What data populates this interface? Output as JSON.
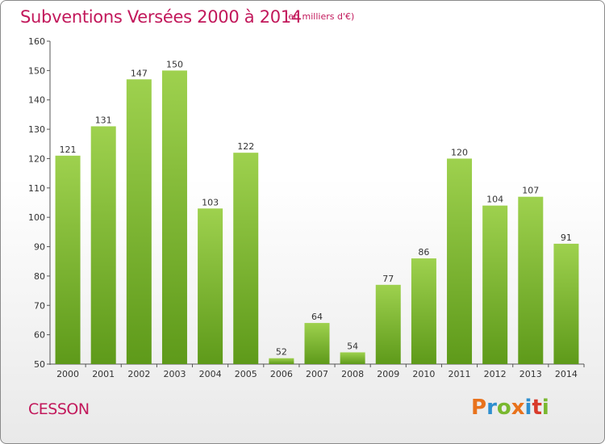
{
  "title": "Subventions Versées 2000 à 2014",
  "subtitle": "(en milliers d'€)",
  "commune": "CESSON",
  "logo": {
    "letters": [
      "P",
      "r",
      "o",
      "x",
      "i",
      "t",
      "i"
    ],
    "colors": [
      "#e8721c",
      "#2f8fcf",
      "#79b82f",
      "#e8721c",
      "#2f8fcf",
      "#d83a2b",
      "#79b82f"
    ]
  },
  "colors": {
    "accent": "#c2185b",
    "bar_top": "#9ed14e",
    "bar_bottom": "#5e9a1a"
  },
  "chart_data": {
    "type": "bar",
    "title": "Subventions Versées 2000 à 2014",
    "subtitle": "(en milliers d'€)",
    "categories": [
      "2000",
      "2001",
      "2002",
      "2003",
      "2004",
      "2005",
      "2006",
      "2007",
      "2008",
      "2009",
      "2010",
      "2011",
      "2012",
      "2013",
      "2014"
    ],
    "values": [
      121,
      131,
      147,
      150,
      103,
      122,
      52,
      64,
      54,
      77,
      86,
      120,
      104,
      107,
      91
    ],
    "ylim": [
      50,
      160
    ],
    "yticks": [
      50,
      60,
      70,
      80,
      90,
      100,
      110,
      120,
      130,
      140,
      150,
      160
    ],
    "grid": false,
    "data_labels": true
  }
}
